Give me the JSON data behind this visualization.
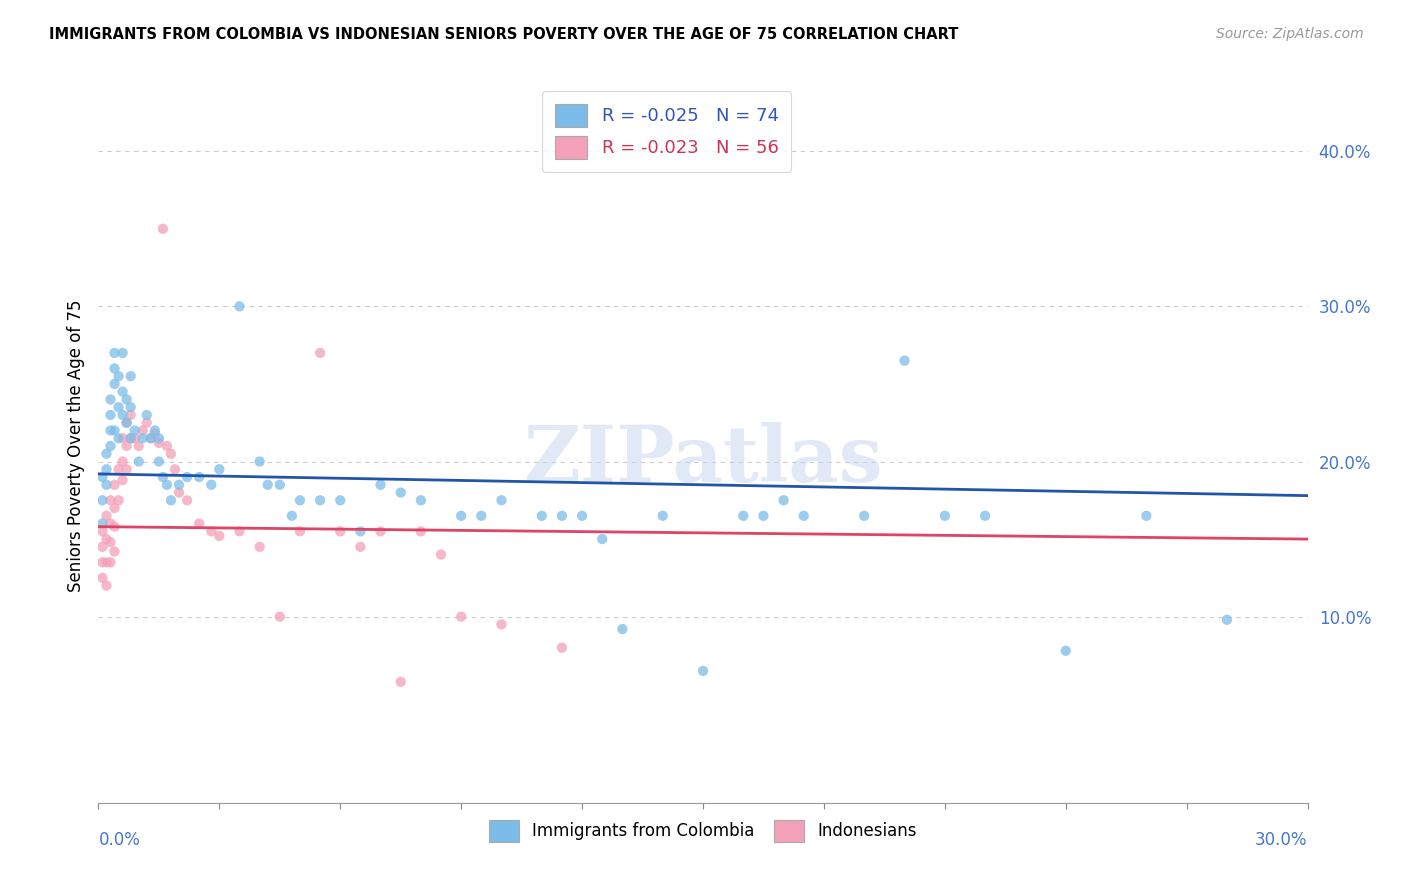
{
  "title": "IMMIGRANTS FROM COLOMBIA VS INDONESIAN SENIORS POVERTY OVER THE AGE OF 75 CORRELATION CHART",
  "source": "Source: ZipAtlas.com",
  "ylabel": "Seniors Poverty Over the Age of 75",
  "ylabel_right_ticks": [
    "10.0%",
    "20.0%",
    "30.0%",
    "40.0%"
  ],
  "ylabel_right_vals": [
    0.1,
    0.2,
    0.3,
    0.4
  ],
  "xlim": [
    0.0,
    0.3
  ],
  "ylim": [
    -0.02,
    0.44
  ],
  "legend_blue_label": "R = -0.025   N = 74",
  "legend_pink_label": "R = -0.023   N = 56",
  "legend_series1": "Immigrants from Colombia",
  "legend_series2": "Indonesians",
  "watermark": "ZIPatlas",
  "blue_color": "#7bbde8",
  "pink_color": "#f4a0b8",
  "blue_line_color": "#2255aa",
  "pink_line_color": "#dd4466",
  "blue_line_x0": 0.0,
  "blue_line_y0": 0.192,
  "blue_line_x1": 0.3,
  "blue_line_y1": 0.178,
  "pink_line_x0": 0.0,
  "pink_line_y0": 0.158,
  "pink_line_x1": 0.3,
  "pink_line_y1": 0.15,
  "blue_scatter": [
    [
      0.001,
      0.19
    ],
    [
      0.001,
      0.175
    ],
    [
      0.001,
      0.16
    ],
    [
      0.002,
      0.205
    ],
    [
      0.002,
      0.195
    ],
    [
      0.002,
      0.185
    ],
    [
      0.003,
      0.24
    ],
    [
      0.003,
      0.23
    ],
    [
      0.003,
      0.22
    ],
    [
      0.003,
      0.21
    ],
    [
      0.004,
      0.27
    ],
    [
      0.004,
      0.26
    ],
    [
      0.004,
      0.25
    ],
    [
      0.004,
      0.22
    ],
    [
      0.005,
      0.255
    ],
    [
      0.005,
      0.235
    ],
    [
      0.005,
      0.215
    ],
    [
      0.006,
      0.27
    ],
    [
      0.006,
      0.245
    ],
    [
      0.006,
      0.23
    ],
    [
      0.007,
      0.24
    ],
    [
      0.007,
      0.225
    ],
    [
      0.008,
      0.255
    ],
    [
      0.008,
      0.235
    ],
    [
      0.008,
      0.215
    ],
    [
      0.009,
      0.22
    ],
    [
      0.01,
      0.2
    ],
    [
      0.011,
      0.215
    ],
    [
      0.012,
      0.23
    ],
    [
      0.013,
      0.215
    ],
    [
      0.014,
      0.22
    ],
    [
      0.015,
      0.215
    ],
    [
      0.015,
      0.2
    ],
    [
      0.016,
      0.19
    ],
    [
      0.017,
      0.185
    ],
    [
      0.018,
      0.175
    ],
    [
      0.02,
      0.185
    ],
    [
      0.022,
      0.19
    ],
    [
      0.025,
      0.19
    ],
    [
      0.028,
      0.185
    ],
    [
      0.03,
      0.195
    ],
    [
      0.035,
      0.3
    ],
    [
      0.04,
      0.2
    ],
    [
      0.042,
      0.185
    ],
    [
      0.045,
      0.185
    ],
    [
      0.048,
      0.165
    ],
    [
      0.05,
      0.175
    ],
    [
      0.055,
      0.175
    ],
    [
      0.06,
      0.175
    ],
    [
      0.065,
      0.155
    ],
    [
      0.07,
      0.185
    ],
    [
      0.075,
      0.18
    ],
    [
      0.08,
      0.175
    ],
    [
      0.09,
      0.165
    ],
    [
      0.095,
      0.165
    ],
    [
      0.1,
      0.175
    ],
    [
      0.11,
      0.165
    ],
    [
      0.115,
      0.165
    ],
    [
      0.12,
      0.165
    ],
    [
      0.125,
      0.15
    ],
    [
      0.13,
      0.092
    ],
    [
      0.14,
      0.165
    ],
    [
      0.15,
      0.065
    ],
    [
      0.16,
      0.165
    ],
    [
      0.165,
      0.165
    ],
    [
      0.17,
      0.175
    ],
    [
      0.175,
      0.165
    ],
    [
      0.19,
      0.165
    ],
    [
      0.2,
      0.265
    ],
    [
      0.21,
      0.165
    ],
    [
      0.22,
      0.165
    ],
    [
      0.24,
      0.078
    ],
    [
      0.26,
      0.165
    ],
    [
      0.28,
      0.098
    ]
  ],
  "pink_scatter": [
    [
      0.001,
      0.155
    ],
    [
      0.001,
      0.145
    ],
    [
      0.001,
      0.135
    ],
    [
      0.001,
      0.125
    ],
    [
      0.002,
      0.165
    ],
    [
      0.002,
      0.15
    ],
    [
      0.002,
      0.135
    ],
    [
      0.002,
      0.12
    ],
    [
      0.003,
      0.175
    ],
    [
      0.003,
      0.16
    ],
    [
      0.003,
      0.148
    ],
    [
      0.003,
      0.135
    ],
    [
      0.004,
      0.185
    ],
    [
      0.004,
      0.17
    ],
    [
      0.004,
      0.158
    ],
    [
      0.004,
      0.142
    ],
    [
      0.005,
      0.195
    ],
    [
      0.005,
      0.175
    ],
    [
      0.006,
      0.215
    ],
    [
      0.006,
      0.2
    ],
    [
      0.006,
      0.188
    ],
    [
      0.007,
      0.225
    ],
    [
      0.007,
      0.21
    ],
    [
      0.007,
      0.195
    ],
    [
      0.008,
      0.23
    ],
    [
      0.008,
      0.215
    ],
    [
      0.009,
      0.215
    ],
    [
      0.01,
      0.21
    ],
    [
      0.011,
      0.22
    ],
    [
      0.012,
      0.225
    ],
    [
      0.013,
      0.215
    ],
    [
      0.014,
      0.218
    ],
    [
      0.015,
      0.212
    ],
    [
      0.016,
      0.35
    ],
    [
      0.017,
      0.21
    ],
    [
      0.018,
      0.205
    ],
    [
      0.019,
      0.195
    ],
    [
      0.02,
      0.18
    ],
    [
      0.022,
      0.175
    ],
    [
      0.025,
      0.16
    ],
    [
      0.028,
      0.155
    ],
    [
      0.03,
      0.152
    ],
    [
      0.035,
      0.155
    ],
    [
      0.04,
      0.145
    ],
    [
      0.045,
      0.1
    ],
    [
      0.05,
      0.155
    ],
    [
      0.055,
      0.27
    ],
    [
      0.06,
      0.155
    ],
    [
      0.065,
      0.145
    ],
    [
      0.07,
      0.155
    ],
    [
      0.075,
      0.058
    ],
    [
      0.08,
      0.155
    ],
    [
      0.085,
      0.14
    ],
    [
      0.09,
      0.1
    ],
    [
      0.1,
      0.095
    ],
    [
      0.115,
      0.08
    ]
  ]
}
